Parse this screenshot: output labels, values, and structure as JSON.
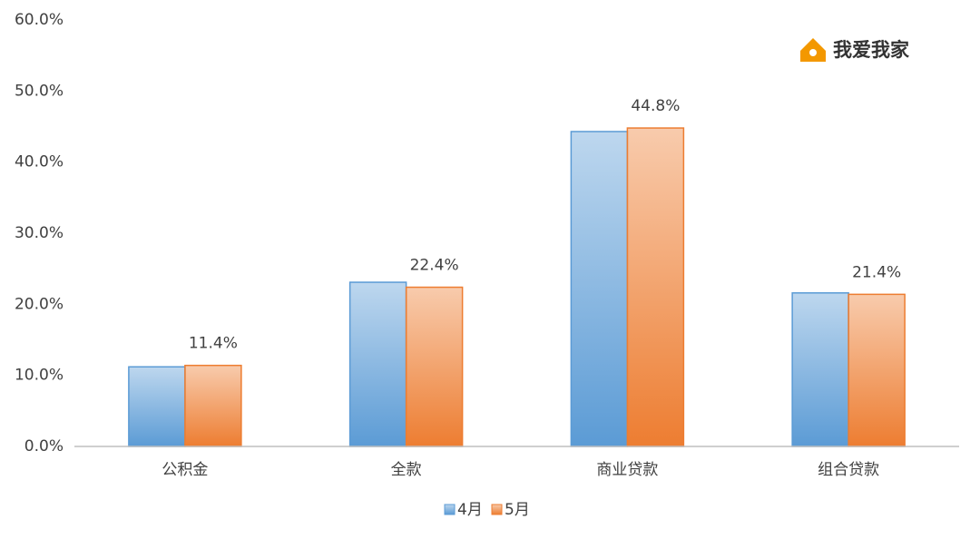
{
  "logo": "我爱我家",
  "chart_data": {
    "type": "bar",
    "categories": [
      "公积金",
      "全款",
      "商业贷款",
      "组合贷款"
    ],
    "series": [
      {
        "name": "4月",
        "color": "#5b9bd5",
        "values": [
          11.2,
          23.1,
          44.3,
          21.6
        ]
      },
      {
        "name": "5月",
        "color": "#ed7d31",
        "values": [
          11.4,
          22.4,
          44.8,
          21.4
        ],
        "value_labels": [
          "11.4%",
          "22.4%",
          "44.8%",
          "21.4%"
        ]
      }
    ],
    "ylim": [
      0,
      60
    ],
    "yticks": [
      {
        "value": 0,
        "label": "0.0%"
      },
      {
        "value": 10,
        "label": "10.0%"
      },
      {
        "value": 20,
        "label": "20.0%"
      },
      {
        "value": 30,
        "label": "30.0%"
      },
      {
        "value": 40,
        "label": "40.0%"
      },
      {
        "value": 50,
        "label": "50.0%"
      },
      {
        "value": 60,
        "label": "60.0%"
      }
    ],
    "grid": false
  }
}
